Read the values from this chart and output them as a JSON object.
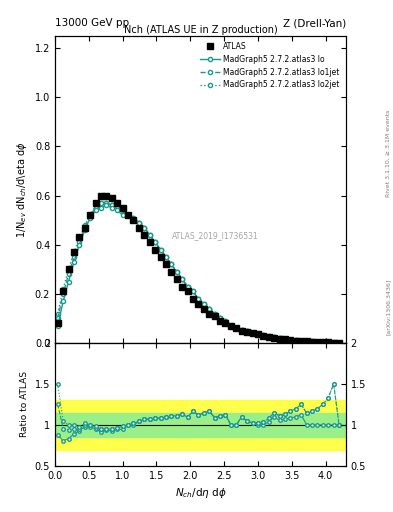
{
  "title_top_left": "13000 GeV pp",
  "title_top_right": "Z (Drell-Yan)",
  "plot_title": "Nch (ATLAS UE in Z production)",
  "xlabel": "$N_{ch}$/d\\eta\\,d$\\phi$",
  "ylabel_main": "1/N$_{ev}$ dN$_{ch}$/d\\eta d$\\phi$",
  "ylabel_ratio": "Ratio to ATLAS",
  "right_label": "Rivet 3.1.10, ≥ 3.1M events",
  "arxiv_label": "[arXiv:1306.3436]",
  "watermark": "ATLAS_2019_I1736531",
  "atlas_x": [
    0.04,
    0.12,
    0.2,
    0.28,
    0.36,
    0.44,
    0.52,
    0.6,
    0.68,
    0.76,
    0.84,
    0.92,
    1.0,
    1.08,
    1.16,
    1.24,
    1.32,
    1.4,
    1.48,
    1.56,
    1.64,
    1.72,
    1.8,
    1.88,
    1.96,
    2.04,
    2.12,
    2.2,
    2.28,
    2.36,
    2.44,
    2.52,
    2.6,
    2.68,
    2.76,
    2.84,
    2.92,
    3.0,
    3.08,
    3.16,
    3.24,
    3.32,
    3.4,
    3.48,
    3.56,
    3.64,
    3.72,
    3.8,
    3.88,
    3.96,
    4.04,
    4.12,
    4.2
  ],
  "atlas_y": [
    0.08,
    0.21,
    0.3,
    0.37,
    0.43,
    0.47,
    0.52,
    0.57,
    0.6,
    0.6,
    0.59,
    0.57,
    0.55,
    0.52,
    0.5,
    0.47,
    0.44,
    0.41,
    0.38,
    0.35,
    0.32,
    0.29,
    0.26,
    0.23,
    0.21,
    0.18,
    0.16,
    0.14,
    0.12,
    0.11,
    0.09,
    0.08,
    0.07,
    0.06,
    0.05,
    0.045,
    0.04,
    0.035,
    0.03,
    0.025,
    0.02,
    0.018,
    0.015,
    0.012,
    0.01,
    0.008,
    0.007,
    0.006,
    0.005,
    0.004,
    0.003,
    0.002,
    0.002
  ],
  "mg_lo_x": [
    0.04,
    0.12,
    0.2,
    0.28,
    0.36,
    0.44,
    0.52,
    0.6,
    0.68,
    0.76,
    0.84,
    0.92,
    1.0,
    1.08,
    1.16,
    1.24,
    1.32,
    1.4,
    1.48,
    1.56,
    1.64,
    1.72,
    1.8,
    1.88,
    1.96,
    2.04,
    2.12,
    2.2,
    2.28,
    2.36,
    2.44,
    2.52,
    2.6,
    2.68,
    2.76,
    2.84,
    2.92,
    3.0,
    3.08,
    3.16,
    3.24,
    3.32,
    3.4,
    3.48,
    3.56,
    3.64,
    3.72,
    3.8,
    3.88,
    3.96,
    4.04,
    4.12,
    4.2
  ],
  "mg_lo_y": [
    0.07,
    0.17,
    0.25,
    0.33,
    0.4,
    0.46,
    0.51,
    0.54,
    0.55,
    0.56,
    0.55,
    0.54,
    0.52,
    0.52,
    0.5,
    0.49,
    0.47,
    0.44,
    0.41,
    0.38,
    0.35,
    0.32,
    0.29,
    0.26,
    0.23,
    0.21,
    0.18,
    0.16,
    0.14,
    0.12,
    0.1,
    0.09,
    0.07,
    0.06,
    0.055,
    0.047,
    0.041,
    0.035,
    0.03,
    0.026,
    0.022,
    0.019,
    0.016,
    0.013,
    0.011,
    0.009,
    0.007,
    0.006,
    0.005,
    0.004,
    0.003,
    0.002,
    0.002
  ],
  "mg_lo1jet_x": [
    0.04,
    0.12,
    0.2,
    0.28,
    0.36,
    0.44,
    0.52,
    0.6,
    0.68,
    0.76,
    0.84,
    0.92,
    1.0,
    1.08,
    1.16,
    1.24,
    1.32,
    1.4,
    1.48,
    1.56,
    1.64,
    1.72,
    1.8,
    1.88,
    1.96,
    2.04,
    2.12,
    2.2,
    2.28,
    2.36,
    2.44,
    2.52,
    2.6,
    2.68,
    2.76,
    2.84,
    2.92,
    3.0,
    3.08,
    3.16,
    3.24,
    3.32,
    3.4,
    3.48,
    3.56,
    3.64,
    3.72,
    3.8,
    3.88,
    3.96,
    4.04,
    4.12,
    4.2
  ],
  "mg_lo1jet_y": [
    0.1,
    0.2,
    0.28,
    0.35,
    0.41,
    0.47,
    0.52,
    0.55,
    0.57,
    0.57,
    0.56,
    0.55,
    0.54,
    0.52,
    0.51,
    0.49,
    0.47,
    0.44,
    0.41,
    0.38,
    0.35,
    0.32,
    0.29,
    0.26,
    0.23,
    0.21,
    0.18,
    0.16,
    0.14,
    0.12,
    0.1,
    0.09,
    0.07,
    0.06,
    0.055,
    0.047,
    0.041,
    0.036,
    0.031,
    0.027,
    0.023,
    0.02,
    0.017,
    0.014,
    0.012,
    0.01,
    0.008,
    0.007,
    0.006,
    0.005,
    0.004,
    0.003,
    0.002
  ],
  "mg_lo2jet_x": [
    0.04,
    0.12,
    0.2,
    0.28,
    0.36,
    0.44,
    0.52,
    0.6,
    0.68,
    0.76,
    0.84,
    0.92,
    1.0,
    1.08,
    1.16,
    1.24,
    1.32,
    1.4,
    1.48,
    1.56,
    1.64,
    1.72,
    1.8,
    1.88,
    1.96,
    2.04,
    2.12,
    2.2,
    2.28,
    2.36,
    2.44,
    2.52,
    2.6,
    2.68,
    2.76,
    2.84,
    2.92,
    3.0,
    3.08,
    3.16,
    3.24,
    3.32,
    3.4,
    3.48,
    3.56,
    3.64,
    3.72,
    3.8,
    3.88,
    3.96,
    4.04,
    4.12,
    4.2
  ],
  "mg_lo2jet_y": [
    0.12,
    0.22,
    0.3,
    0.37,
    0.42,
    0.48,
    0.52,
    0.56,
    0.57,
    0.57,
    0.56,
    0.55,
    0.54,
    0.52,
    0.51,
    0.49,
    0.47,
    0.44,
    0.41,
    0.38,
    0.35,
    0.32,
    0.29,
    0.26,
    0.23,
    0.21,
    0.18,
    0.16,
    0.14,
    0.12,
    0.1,
    0.09,
    0.07,
    0.06,
    0.055,
    0.047,
    0.041,
    0.036,
    0.031,
    0.027,
    0.023,
    0.02,
    0.017,
    0.014,
    0.012,
    0.01,
    0.008,
    0.007,
    0.006,
    0.005,
    0.004,
    0.003,
    0.002
  ],
  "color_mg": "#1a9a8a",
  "main_ylim": [
    0,
    1.25
  ],
  "ratio_ylim": [
    0.5,
    2.0
  ],
  "xlim": [
    0,
    4.3
  ],
  "band_yellow": [
    0.7,
    1.3
  ],
  "band_green": [
    0.85,
    1.15
  ],
  "legend_labels": [
    "ATLAS",
    "MadGraph5 2.7.2.atlas3 lo",
    "MadGraph5 2.7.2.atlas3 lo1jet",
    "MadGraph5 2.7.2.atlas3 lo2jet"
  ]
}
